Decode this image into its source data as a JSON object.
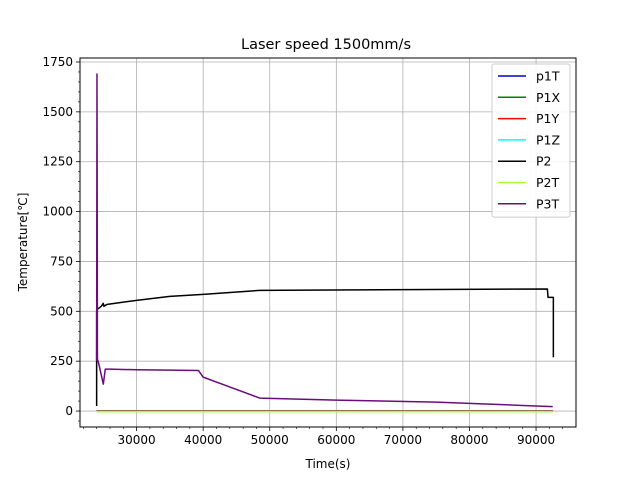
{
  "chart_data": {
    "type": "line",
    "title": "Laser speed 1500mm/s",
    "xlabel": "Time(s)",
    "ylabel": "Temperature[℃]",
    "xlim": [
      21500,
      96000
    ],
    "ylim": [
      -80,
      1770
    ],
    "xticks": [
      30000,
      40000,
      50000,
      60000,
      70000,
      80000,
      90000
    ],
    "xtick_labels": [
      "30000",
      "40000",
      "50000",
      "60000",
      "70000",
      "80000",
      "90000"
    ],
    "yticks": [
      0,
      250,
      500,
      750,
      1000,
      1250,
      1500,
      1750
    ],
    "ytick_labels": [
      "0",
      "250",
      "500",
      "750",
      "1000",
      "1250",
      "1500",
      "1750"
    ],
    "grid": true,
    "legend_position": "top-right",
    "series": [
      {
        "name": "p1T",
        "color": "#0000cc",
        "x": [
          24000,
          92500
        ],
        "y": [
          0,
          0
        ]
      },
      {
        "name": "P1X",
        "color": "#008000",
        "x": [
          24000,
          92500
        ],
        "y": [
          0,
          0
        ]
      },
      {
        "name": "P1Y",
        "color": "#ff0000",
        "x": [
          24000,
          92500
        ],
        "y": [
          0,
          0
        ]
      },
      {
        "name": "P1Z",
        "color": "#00ffff",
        "x": [
          24000,
          92500
        ],
        "y": [
          -2,
          -2
        ]
      },
      {
        "name": "P2",
        "color": "#000000",
        "x": [
          24000,
          24000,
          24100,
          24700,
          25000,
          25100,
          25300,
          25600,
          30000,
          35000,
          40000,
          48500,
          91700,
          91800,
          92600,
          92600
        ],
        "y": [
          25,
          500,
          510,
          525,
          540,
          525,
          530,
          535,
          555,
          575,
          585,
          605,
          612,
          570,
          570,
          270
        ]
      },
      {
        "name": "P2T",
        "color": "#adff2f",
        "x": [
          24000,
          92500
        ],
        "y": [
          -3,
          -3
        ]
      },
      {
        "name": "P3T",
        "color": "#6a0d7a",
        "x": [
          24000,
          24050,
          24120,
          24300,
          24700,
          25000,
          25300,
          26000,
          30000,
          35000,
          39300,
          40000,
          48500,
          60000,
          75000,
          88000,
          92500
        ],
        "y": [
          250,
          1690,
          260,
          240,
          180,
          135,
          210,
          210,
          207,
          205,
          203,
          170,
          65,
          55,
          45,
          28,
          22
        ]
      }
    ]
  }
}
